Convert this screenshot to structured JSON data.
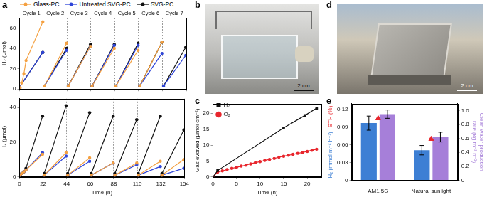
{
  "chart_data": [
    {
      "panel": "a",
      "type": "line",
      "legend": "top",
      "annotations": [
        "Cycle 1",
        "Cycle 2",
        "Cycle 3",
        "Cycle 4",
        "Cycle 5",
        "Cycle 6",
        "Cycle 7"
      ],
      "y_label": "H₂ (μmol)",
      "xlim": [
        0,
        154
      ],
      "xticks": [
        0,
        22,
        44,
        66,
        88,
        110,
        132,
        154
      ],
      "ylim": [
        0,
        70
      ],
      "yticks": [
        0,
        20,
        40,
        60
      ],
      "grid": "x",
      "tick_labels": "y",
      "series": [
        {
          "name": "Glass-PC",
          "color": "#f4a040",
          "marker": "circle",
          "x": [
            0.5,
            2,
            4,
            6,
            21.5,
            22,
            23,
            43.5,
            44,
            45,
            65.5,
            66,
            67,
            87.5,
            88,
            89,
            109.5,
            110,
            111,
            131.5
          ],
          "values": [
            1,
            6,
            15,
            28,
            66,
            null,
            3,
            45,
            null,
            3,
            42,
            null,
            3,
            40,
            null,
            3,
            38,
            null,
            3,
            46
          ]
        },
        {
          "name": "Untreated SVG-PC",
          "color": "#2f45d8",
          "marker": "circle",
          "x": [
            0,
            21.5,
            22,
            23,
            43.5,
            44,
            45,
            65.5,
            66,
            67,
            87.5,
            88,
            89,
            109.5,
            110,
            111,
            131.5,
            132,
            133,
            153.5
          ],
          "values": [
            2,
            36,
            null,
            3,
            38,
            null,
            3,
            42,
            null,
            3,
            43,
            null,
            3,
            43,
            null,
            3,
            35,
            null,
            3,
            33
          ]
        },
        {
          "name": "SVG-PC",
          "color": "#111111",
          "marker": "circle",
          "x": [
            0,
            21.5,
            22,
            23,
            43.5,
            44,
            45,
            65.5,
            66,
            67,
            87.5,
            88,
            89,
            109.5,
            110,
            111,
            131.5,
            132,
            133,
            153.5
          ],
          "values": [
            2,
            36,
            null,
            3,
            40,
            null,
            3,
            44,
            null,
            3,
            44,
            null,
            3,
            45,
            null,
            3,
            46,
            null,
            3,
            41
          ]
        }
      ]
    },
    {
      "type": "line",
      "x_label": "Time (h)",
      "y_label": "H₂ (μmol)",
      "xlim": [
        0,
        154
      ],
      "xticks": [
        0,
        22,
        44,
        66,
        88,
        110,
        132,
        154
      ],
      "ylim": [
        0,
        45
      ],
      "yticks": [
        0,
        20,
        40
      ],
      "grid": "x",
      "series": [
        {
          "name": "Glass-PC",
          "color": "#f4a040",
          "marker": "circle",
          "x": [
            0.5,
            2,
            4,
            6,
            21.5,
            22,
            23,
            43.5,
            44,
            45,
            65.5,
            66,
            67,
            87.5,
            88,
            89,
            109.5,
            110,
            111,
            131.5,
            132,
            133,
            153.5
          ],
          "values": [
            1,
            2,
            3,
            4,
            13,
            null,
            1,
            14,
            null,
            1,
            11,
            null,
            1,
            8,
            null,
            1,
            8,
            null,
            1,
            9,
            null,
            1,
            10
          ]
        },
        {
          "name": "Untreated SVG-PC",
          "color": "#2f45d8",
          "marker": "circle",
          "x": [
            0.5,
            2,
            4,
            6,
            21.5,
            22,
            23,
            43.5,
            44,
            45,
            65.5,
            66,
            67,
            87.5,
            88,
            89,
            109.5,
            110,
            111,
            131.5,
            132,
            133,
            153.5
          ],
          "values": [
            1,
            2,
            3,
            4,
            14,
            null,
            1,
            12,
            null,
            1,
            9,
            null,
            1,
            8,
            null,
            1,
            7,
            null,
            1,
            6,
            null,
            1,
            5
          ]
        },
        {
          "name": "SVG-PC",
          "color": "#111111",
          "marker": "circle",
          "x": [
            0.5,
            2,
            4,
            6,
            21.5,
            22,
            23,
            43.5,
            44,
            45,
            65.5,
            66,
            67,
            87.5,
            88,
            89,
            109.5,
            110,
            111,
            131.5,
            132,
            133,
            153.5
          ],
          "values": [
            1,
            2,
            3,
            5,
            35,
            null,
            2,
            41,
            null,
            2,
            37,
            null,
            2,
            35,
            null,
            2,
            33,
            null,
            2,
            35,
            null,
            2,
            27
          ]
        }
      ]
    },
    {
      "panel": "c",
      "type": "line",
      "legend": "top-left",
      "x_label": "Time (h)",
      "y_label": "Gas evolved (μmol cm⁻²)",
      "xlim": [
        0,
        23
      ],
      "xticks": [
        0,
        5,
        10,
        15,
        20
      ],
      "ylim": [
        0,
        23
      ],
      "yticks": [
        0,
        5,
        10,
        15,
        20
      ],
      "grid": false,
      "series": [
        {
          "name": "H₂",
          "color": "#111111",
          "marker": "square",
          "x": [
            0,
            1,
            15,
            19.5,
            22
          ],
          "values": [
            0,
            2,
            15.4,
            19.3,
            21.6
          ]
        },
        {
          "name": "O₂",
          "color": "#e8262d",
          "marker": "circle",
          "x": [
            0,
            1,
            2,
            3,
            4,
            5,
            6,
            7,
            8,
            9,
            10,
            11,
            12,
            13,
            14,
            15,
            16,
            17,
            18,
            19,
            20,
            21,
            22
          ],
          "values": [
            0,
            1.5,
            1.9,
            2.3,
            2.7,
            3.0,
            3.4,
            3.7,
            4.1,
            4.5,
            4.8,
            5.2,
            5.5,
            5.8,
            6.2,
            6.5,
            6.8,
            7.1,
            7.4,
            7.7,
            8.0,
            8.4,
            8.7
          ]
        }
      ]
    },
    {
      "panel": "e",
      "type": "bar",
      "categories": [
        "AM1.5G",
        "Natural sunlight"
      ],
      "ylim": [
        0,
        0.13
      ],
      "yticks": [
        0,
        0.03,
        0.06,
        0.09,
        0.12
      ],
      "y2lim": [
        0,
        1.1
      ],
      "y2ticks": [
        0,
        0.2,
        0.4,
        0.6,
        0.8,
        {
          "value": 1,
          "label": "1.0"
        }
      ],
      "grid": false,
      "series": [
        {
          "name": "H₂ (mmol m⁻² h⁻¹)",
          "type": "bar",
          "color": "#3d7fd4",
          "values": [
            0.097,
            0.051
          ],
          "errors": [
            0.012,
            0.008
          ]
        },
        {
          "name": "STH (%)",
          "type": "scatter",
          "marker": "triangle",
          "color": "#e8262d",
          "values": [
            0.105,
            0.07
          ]
        },
        {
          "name": "Clean water production rate (kg m⁻² h⁻¹)",
          "type": "bar",
          "axis": "y2",
          "color": "#a67fd9",
          "values": [
            0.95,
            0.62
          ],
          "errors": [
            0.06,
            0.07
          ]
        }
      ]
    }
  ],
  "images": [
    {
      "panel": "b",
      "scale_bar": "2 cm"
    },
    {
      "panel": "d",
      "scale_bar": "2 cm"
    }
  ]
}
